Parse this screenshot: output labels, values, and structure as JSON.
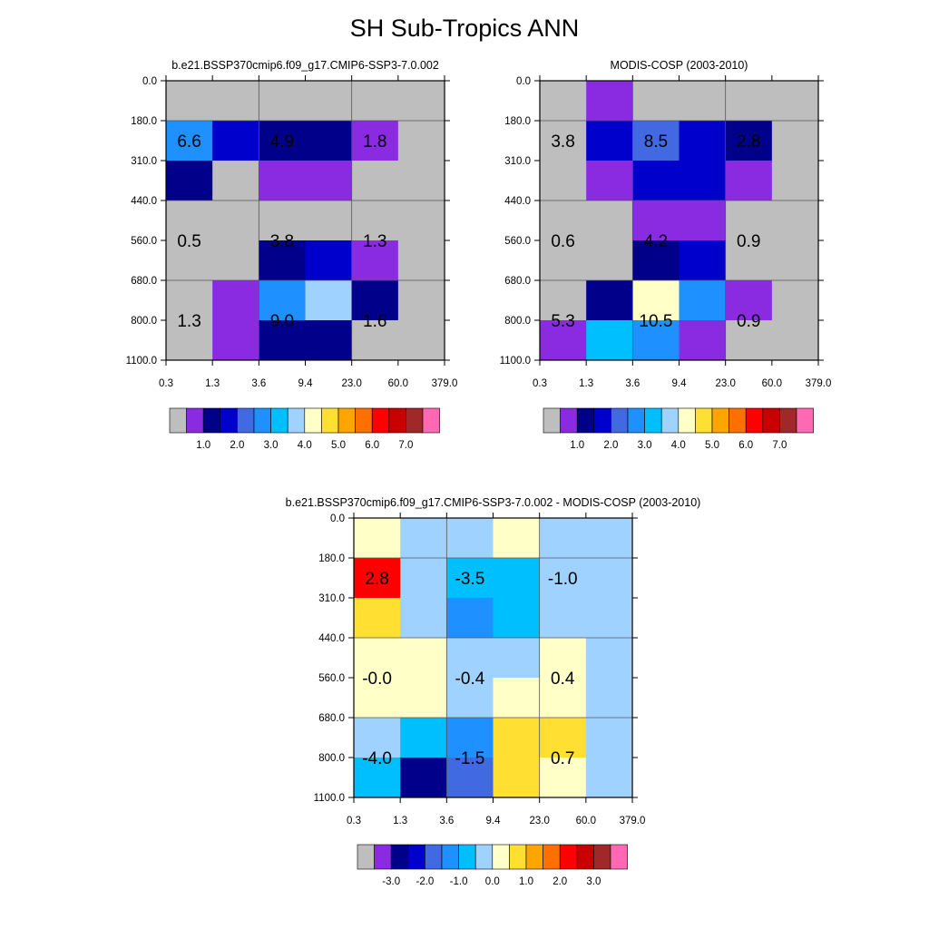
{
  "title": "SH Sub-Tropics ANN",
  "colors": {
    "missing": "#bebebe",
    "palette": [
      "#bebebe",
      "#8a2be2",
      "#00008b",
      "#0000cd",
      "#4169e1",
      "#1e90ff",
      "#00bfff",
      "#a0d2ff",
      "#ffffc8",
      "#ffdf32",
      "#ffa500",
      "#ff7000",
      "#ff0000",
      "#c80000",
      "#a02828",
      "#ff69b4"
    ]
  },
  "chart_data": [
    {
      "type": "heatmap",
      "title": "b.e21.BSSP370cmip6.f09_g17.CMIP6-SSP3-7.0.002",
      "x_ticks": [
        "0.3",
        "1.3",
        "3.6",
        "9.4",
        "23.0",
        "60.0",
        "379.0"
      ],
      "y_ticks": [
        "0.0",
        "180.0",
        "310.0",
        "440.0",
        "560.0",
        "680.0",
        "800.0",
        "1100.0"
      ],
      "cell_color_index": [
        [
          0,
          0,
          0,
          0,
          0,
          0
        ],
        [
          5,
          3,
          2,
          2,
          1,
          0
        ],
        [
          2,
          0,
          1,
          1,
          0,
          0
        ],
        [
          0,
          0,
          0,
          0,
          0,
          0
        ],
        [
          0,
          0,
          2,
          3,
          1,
          0
        ],
        [
          0,
          1,
          5,
          7,
          2,
          0
        ],
        [
          0,
          1,
          2,
          2,
          0,
          0
        ]
      ],
      "box_labels": [
        {
          "text": "6.6",
          "col": 0.5,
          "row": 1.5
        },
        {
          "text": "4.9",
          "col": 2.5,
          "row": 1.5
        },
        {
          "text": "1.8",
          "col": 4.5,
          "row": 1.5
        },
        {
          "text": "0.5",
          "col": 0.5,
          "row": 4.0
        },
        {
          "text": "3.8",
          "col": 2.5,
          "row": 4.0
        },
        {
          "text": "1.3",
          "col": 4.5,
          "row": 4.0
        },
        {
          "text": "1.3",
          "col": 0.5,
          "row": 6.0
        },
        {
          "text": "9.0",
          "col": 2.5,
          "row": 6.0
        },
        {
          "text": "1.6",
          "col": 4.5,
          "row": 6.0
        }
      ],
      "colorbar_labels": [
        "1.0",
        "2.0",
        "3.0",
        "4.0",
        "5.0",
        "6.0",
        "7.0"
      ]
    },
    {
      "type": "heatmap",
      "title": "MODIS-COSP (2003-2010)",
      "x_ticks": [
        "0.3",
        "1.3",
        "3.6",
        "9.4",
        "23.0",
        "60.0",
        "379.0"
      ],
      "y_ticks": [
        "0.0",
        "180.0",
        "310.0",
        "440.0",
        "560.0",
        "680.0",
        "800.0",
        "1100.0"
      ],
      "cell_color_index": [
        [
          0,
          1,
          0,
          0,
          0,
          0
        ],
        [
          0,
          3,
          4,
          3,
          2,
          0
        ],
        [
          0,
          1,
          3,
          3,
          1,
          0
        ],
        [
          0,
          0,
          1,
          1,
          0,
          0
        ],
        [
          0,
          0,
          2,
          3,
          0,
          0
        ],
        [
          0,
          2,
          8,
          5,
          1,
          0
        ],
        [
          1,
          6,
          5,
          1,
          0,
          0
        ]
      ],
      "box_labels": [
        {
          "text": "3.8",
          "col": 0.5,
          "row": 1.5
        },
        {
          "text": "8.5",
          "col": 2.5,
          "row": 1.5
        },
        {
          "text": "2.8",
          "col": 4.5,
          "row": 1.5
        },
        {
          "text": "0.6",
          "col": 0.5,
          "row": 4.0
        },
        {
          "text": "4.2",
          "col": 2.5,
          "row": 4.0
        },
        {
          "text": "0.9",
          "col": 4.5,
          "row": 4.0
        },
        {
          "text": "5.3",
          "col": 0.5,
          "row": 6.0
        },
        {
          "text": "10.5",
          "col": 2.5,
          "row": 6.0
        },
        {
          "text": "0.9",
          "col": 4.5,
          "row": 6.0
        }
      ],
      "colorbar_labels": [
        "1.0",
        "2.0",
        "3.0",
        "4.0",
        "5.0",
        "6.0",
        "7.0"
      ]
    },
    {
      "type": "heatmap",
      "title": "b.e21.BSSP370cmip6.f09_g17.CMIP6-SSP3-7.0.002 - MODIS-COSP (2003-2010)",
      "x_ticks": [
        "0.3",
        "1.3",
        "3.6",
        "9.4",
        "23.0",
        "60.0",
        "379.0"
      ],
      "y_ticks": [
        "0.0",
        "180.0",
        "310.0",
        "440.0",
        "560.0",
        "680.0",
        "800.0",
        "1100.0"
      ],
      "cell_color_index": [
        [
          8,
          7,
          7,
          8,
          7,
          7
        ],
        [
          12,
          7,
          6,
          6,
          7,
          7
        ],
        [
          9,
          7,
          5,
          6,
          7,
          7
        ],
        [
          8,
          8,
          7,
          7,
          8,
          7
        ],
        [
          8,
          8,
          7,
          8,
          8,
          7
        ],
        [
          7,
          6,
          5,
          9,
          9,
          7
        ],
        [
          6,
          2,
          4,
          9,
          8,
          7
        ]
      ],
      "box_labels": [
        {
          "text": "2.8",
          "col": 0.5,
          "row": 1.5
        },
        {
          "text": "-3.5",
          "col": 2.5,
          "row": 1.5
        },
        {
          "text": "-1.0",
          "col": 4.5,
          "row": 1.5
        },
        {
          "text": "-0.0",
          "col": 0.5,
          "row": 4.0
        },
        {
          "text": "-0.4",
          "col": 2.5,
          "row": 4.0
        },
        {
          "text": "0.4",
          "col": 4.5,
          "row": 4.0
        },
        {
          "text": "-4.0",
          "col": 0.5,
          "row": 6.0
        },
        {
          "text": "-1.5",
          "col": 2.5,
          "row": 6.0
        },
        {
          "text": "0.7",
          "col": 4.5,
          "row": 6.0
        }
      ],
      "colorbar_labels": [
        "-3.0",
        "-2.0",
        "-1.0",
        "0.0",
        "1.0",
        "2.0",
        "3.0"
      ]
    }
  ]
}
